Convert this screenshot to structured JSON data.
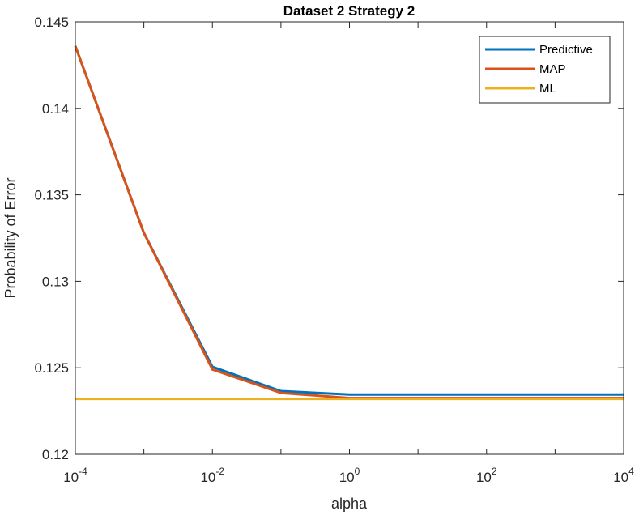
{
  "chart_data": {
    "type": "line",
    "title": "Dataset 2 Strategy 2",
    "xlabel": "alpha",
    "ylabel": "Probability of Error",
    "xscale": "log",
    "xlim": [
      0.0001,
      10000
    ],
    "ylim": [
      0.12,
      0.145
    ],
    "x_ticks": [
      {
        "base": "10",
        "exp": "-4"
      },
      {
        "base": "10",
        "exp": "-2"
      },
      {
        "base": "10",
        "exp": "0"
      },
      {
        "base": "10",
        "exp": "2"
      },
      {
        "base": "10",
        "exp": "4"
      }
    ],
    "y_ticks": [
      "0.12",
      "0.125",
      "0.13",
      "0.135",
      "0.14",
      "0.145"
    ],
    "x": [
      0.0001,
      0.001,
      0.01,
      0.1,
      1,
      10,
      100,
      1000,
      10000
    ],
    "series": [
      {
        "name": "Predictive",
        "color": "#0072BD",
        "values": [
          0.1436,
          0.1328,
          0.12505,
          0.12365,
          0.12345,
          0.12345,
          0.12345,
          0.12345,
          0.12345
        ]
      },
      {
        "name": "MAP",
        "color": "#D95319",
        "values": [
          0.1436,
          0.1328,
          0.1249,
          0.12355,
          0.12325,
          0.12325,
          0.12325,
          0.12325,
          0.12325
        ]
      },
      {
        "name": "ML",
        "color": "#EDB120",
        "values": [
          0.1232,
          0.1232,
          0.1232,
          0.1232,
          0.1232,
          0.1232,
          0.1232,
          0.1232,
          0.1232
        ]
      }
    ],
    "grid": false,
    "legend_position": "top-right"
  }
}
